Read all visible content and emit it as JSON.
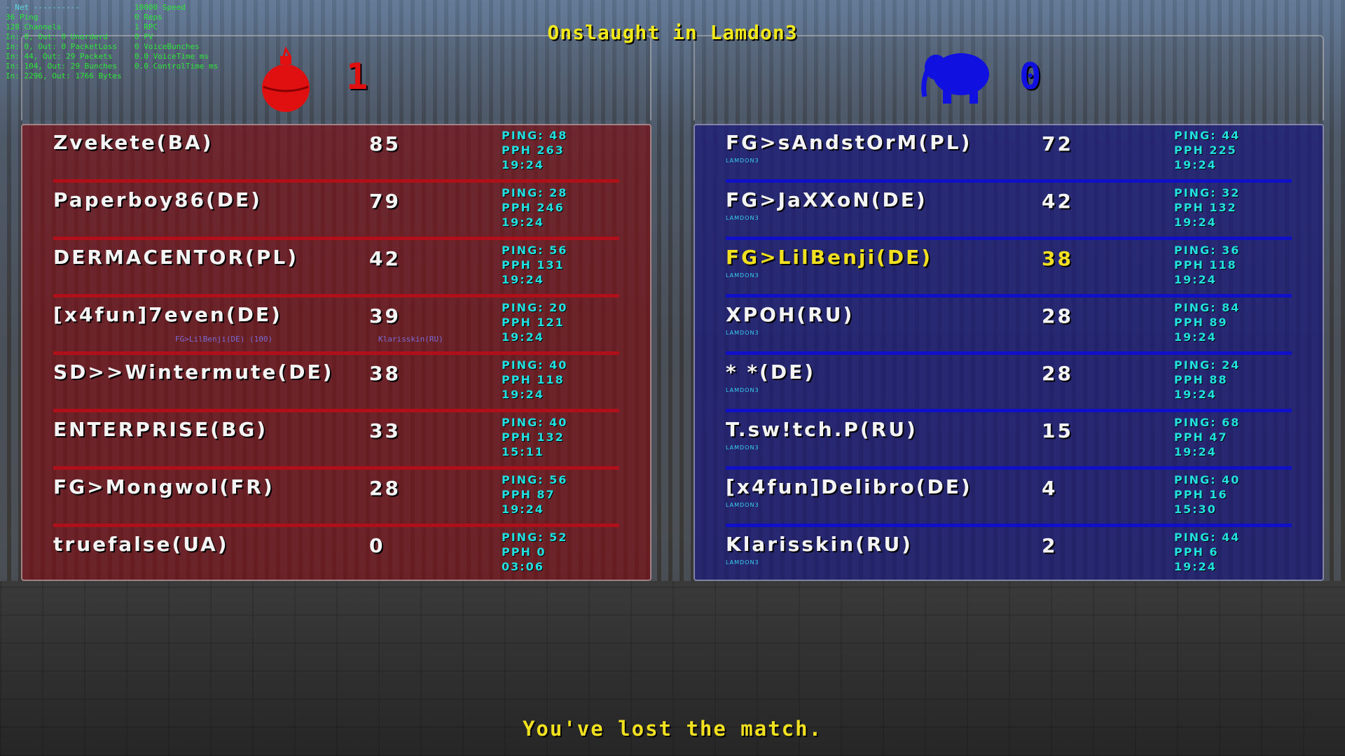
{
  "net_stats": [
    "- Net ----------",
    "36 Ping",
    "128 Channels",
    "In: 0, Out: 0 Unorderd",
    "In: 0, Out: 0 PacketLoss",
    "In: 44, Out: 29 Packets",
    "In: 104, Out: 29 Bunches",
    "In: 2296, Out: 1766 Bytes",
    "10000 Speed",
    "0 Reps",
    "1 RPC",
    "0 PV",
    "0 VoiceBunches",
    "0.0 VoiceTime ms",
    "0.0 ControlTime ms"
  ],
  "title": "Onslaught in Lamdon3",
  "message": "You've lost the match.",
  "world_labels": {
    "player_tag": "FG>LilBenji(DE) (100)",
    "enemy_tag": "Klarisskin(RU)"
  },
  "red_team": {
    "icon": "grenade-icon",
    "color": "#e01010",
    "score": "1",
    "players": [
      {
        "name": "Zvekete(BA)",
        "score": "85",
        "ping": "PING: 48",
        "pph": "PPH 263",
        "time": "19:24"
      },
      {
        "name": "Paperboy86(DE)",
        "score": "79",
        "ping": "PING: 28",
        "pph": "PPH 246",
        "time": "19:24"
      },
      {
        "name": "DERMACENTOR(PL)",
        "score": "42",
        "ping": "PING: 56",
        "pph": "PPH 131",
        "time": "19:24"
      },
      {
        "name": "[x4fun]7even(DE)",
        "score": "39",
        "ping": "PING: 20",
        "pph": "PPH 121",
        "time": "19:24"
      },
      {
        "name": "SD>>Wintermute(DE)",
        "score": "38",
        "ping": "PING: 40",
        "pph": "PPH 118",
        "time": "19:24"
      },
      {
        "name": "ENTERPRISE(BG)",
        "score": "33",
        "ping": "PING: 40",
        "pph": "PPH 132",
        "time": "15:11"
      },
      {
        "name": "FG>Mongwol(FR)",
        "score": "28",
        "ping": "PING: 56",
        "pph": "PPH 87",
        "time": "19:24"
      },
      {
        "name": "truefalse(UA)",
        "score": "0",
        "ping": "PING: 52",
        "pph": "PPH 0",
        "time": "03:06"
      }
    ]
  },
  "blue_team": {
    "icon": "elephant-icon",
    "color": "#1010e0",
    "score": "0",
    "players": [
      {
        "name": "FG>sAndstOrM(PL)",
        "location": "LAMDON3",
        "score": "72",
        "ping": "PING: 44",
        "pph": "PPH 225",
        "time": "19:24"
      },
      {
        "name": "FG>JaXXoN(DE)",
        "location": "LAMDON3",
        "score": "42",
        "ping": "PING: 32",
        "pph": "PPH 132",
        "time": "19:24"
      },
      {
        "name": "FG>LilBenji(DE)",
        "location": "LAMDON3",
        "score": "38",
        "ping": "PING: 36",
        "pph": "PPH 118",
        "time": "19:24",
        "highlight": true
      },
      {
        "name": "XPOH(RU)",
        "location": "LAMDON3",
        "score": "28",
        "ping": "PING: 84",
        "pph": "PPH 89",
        "time": "19:24"
      },
      {
        "name": "* *(DE)",
        "location": "LAMDON3",
        "score": "28",
        "ping": "PING: 24",
        "pph": "PPH 88",
        "time": "19:24"
      },
      {
        "name": "T.sw!tch.P(RU)",
        "location": "LAMDON3",
        "score": "15",
        "ping": "PING: 68",
        "pph": "PPH 47",
        "time": "19:24"
      },
      {
        "name": "[x4fun]Delibro(DE)",
        "location": "LAMDON3",
        "score": "4",
        "ping": "PING: 40",
        "pph": "PPH 16",
        "time": "15:30"
      },
      {
        "name": "Klarisskin(RU)",
        "location": "LAMDON3",
        "score": "2",
        "ping": "PING: 44",
        "pph": "PPH 6",
        "time": "19:24"
      }
    ]
  }
}
